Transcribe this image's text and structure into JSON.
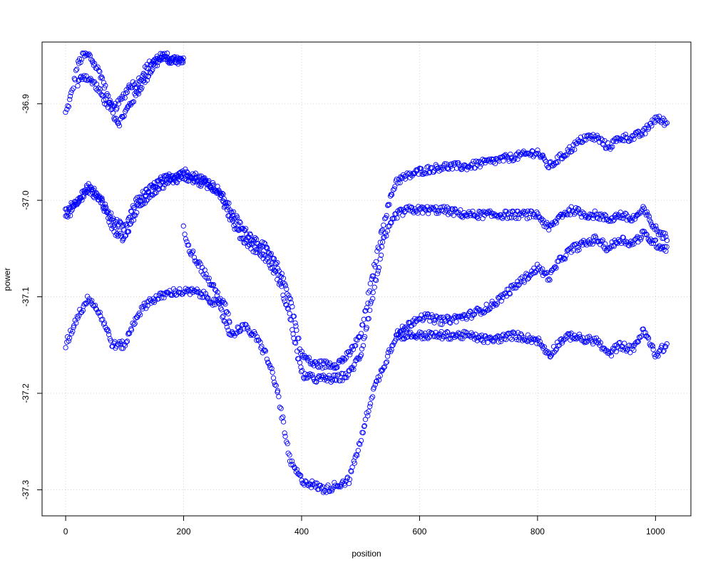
{
  "chart_data": {
    "type": "scatter",
    "title": "",
    "xlabel": "position",
    "ylabel": "power",
    "xlim": [
      -40,
      1060
    ],
    "ylim": [
      -37.327,
      -36.836
    ],
    "x_ticks": [
      0,
      200,
      400,
      600,
      800,
      1000
    ],
    "y_ticks": [
      -37.3,
      -37.2,
      -37.1,
      -37.0,
      -36.9
    ],
    "x_tick_labels": [
      "0",
      "200",
      "400",
      "600",
      "800",
      "1000"
    ],
    "y_tick_labels": [
      "-37.3",
      "-37.2",
      "-37.1",
      "-37.0",
      "-36.9"
    ],
    "grid": true,
    "marker": "open-circle",
    "point_color": "#0000ff",
    "series": [
      {
        "x": [
          0,
          10,
          20,
          30,
          40,
          50,
          60,
          70,
          80,
          90,
          100,
          110,
          120,
          130,
          140,
          150,
          160,
          170,
          180,
          190,
          200
        ],
        "y": [
          -36.91,
          -36.89,
          -36.86,
          -36.85,
          -36.85,
          -36.86,
          -36.87,
          -36.89,
          -36.91,
          -36.92,
          -36.91,
          -36.9,
          -36.89,
          -36.88,
          -36.87,
          -36.86,
          -36.855,
          -36.85,
          -36.855,
          -36.855,
          -36.855
        ]
      },
      {
        "x": [
          20,
          30,
          40,
          50,
          60,
          70,
          80,
          90,
          100,
          110,
          120,
          130,
          140,
          150,
          160,
          170,
          180,
          190,
          200
        ],
        "y": [
          -36.88,
          -36.87,
          -36.875,
          -36.88,
          -36.89,
          -36.9,
          -36.905,
          -36.9,
          -36.89,
          -36.88,
          -36.88,
          -36.87,
          -36.86,
          -36.855,
          -36.85,
          -36.855,
          -36.855,
          -36.855,
          -36.855
        ]
      },
      {
        "x": [
          0,
          20,
          40,
          60,
          80,
          100,
          120,
          140,
          160,
          180,
          200,
          220,
          240,
          260,
          280,
          300,
          320,
          340,
          360,
          380,
          400,
          420,
          440,
          460,
          480,
          500,
          520,
          540,
          560,
          580,
          600,
          640,
          680,
          720,
          760,
          800,
          820,
          840,
          860,
          880,
          900,
          920,
          940,
          960,
          980,
          1000,
          1020
        ],
        "y": [
          -37.02,
          -37.0,
          -36.99,
          -37.0,
          -37.02,
          -37.03,
          -37.0,
          -36.99,
          -36.98,
          -36.975,
          -36.97,
          -36.975,
          -36.98,
          -36.99,
          -37.01,
          -37.03,
          -37.04,
          -37.05,
          -37.07,
          -37.1,
          -37.16,
          -37.17,
          -37.17,
          -37.17,
          -37.16,
          -37.14,
          -37.08,
          -37.02,
          -36.98,
          -36.975,
          -36.97,
          -36.965,
          -36.965,
          -36.96,
          -36.955,
          -36.95,
          -36.965,
          -36.955,
          -36.945,
          -36.935,
          -36.935,
          -36.945,
          -36.935,
          -36.935,
          -36.93,
          -36.915,
          -36.92
        ]
      },
      {
        "x": [
          0,
          20,
          40,
          60,
          80,
          100,
          120,
          140,
          160,
          180,
          200,
          220,
          240,
          260,
          280,
          300,
          320,
          340,
          360,
          380,
          400,
          420,
          440,
          460,
          480,
          500,
          520,
          540,
          560,
          580,
          600,
          640,
          680,
          720,
          760,
          800,
          820,
          840,
          860,
          880,
          900,
          920,
          940,
          960,
          980,
          1000,
          1020
        ],
        "y": [
          -37.01,
          -37.0,
          -36.985,
          -37.0,
          -37.03,
          -37.04,
          -37.01,
          -36.995,
          -36.985,
          -36.98,
          -36.975,
          -36.98,
          -36.985,
          -36.99,
          -37.02,
          -37.04,
          -37.05,
          -37.06,
          -37.08,
          -37.12,
          -37.18,
          -37.185,
          -37.185,
          -37.185,
          -37.18,
          -37.16,
          -37.1,
          -37.04,
          -37.015,
          -37.01,
          -37.01,
          -37.01,
          -37.015,
          -37.015,
          -37.015,
          -37.015,
          -37.03,
          -37.015,
          -37.01,
          -37.015,
          -37.015,
          -37.02,
          -37.015,
          -37.02,
          -37.01,
          -37.03,
          -37.04
        ]
      },
      {
        "x": [
          200,
          210,
          220,
          230,
          240,
          250,
          260,
          270,
          280
        ],
        "y": [
          -37.03,
          -37.05,
          -37.06,
          -37.07,
          -37.08,
          -37.09,
          -37.1,
          -37.11,
          -37.13
        ]
      },
      {
        "x": [
          0,
          20,
          40,
          60,
          80,
          100,
          120,
          140,
          160,
          180,
          200,
          220,
          240,
          260,
          280,
          300,
          320,
          340,
          360,
          380,
          400,
          420,
          440,
          460,
          480,
          500,
          520,
          540,
          560,
          580,
          600,
          640,
          680,
          720,
          760,
          800,
          820,
          840,
          860,
          880,
          900,
          920,
          940,
          960,
          980,
          1000,
          1020
        ],
        "y": [
          -37.15,
          -37.12,
          -37.1,
          -37.12,
          -37.15,
          -37.15,
          -37.12,
          -37.105,
          -37.1,
          -37.095,
          -37.095,
          -37.095,
          -37.1,
          -37.11,
          -37.14,
          -37.13,
          -37.14,
          -37.16,
          -37.2,
          -37.27,
          -37.29,
          -37.295,
          -37.3,
          -37.295,
          -37.29,
          -37.25,
          -37.2,
          -37.17,
          -37.14,
          -37.13,
          -37.12,
          -37.125,
          -37.12,
          -37.11,
          -37.09,
          -37.07,
          -37.08,
          -37.06,
          -37.05,
          -37.045,
          -37.04,
          -37.05,
          -37.04,
          -37.045,
          -37.035,
          -37.045,
          -37.05
        ]
      },
      {
        "x": [
          560,
          600,
          640,
          680,
          720,
          760,
          800,
          820,
          840,
          860,
          880,
          900,
          920,
          940,
          960,
          980,
          1000,
          1020
        ],
        "y": [
          -37.14,
          -37.14,
          -37.14,
          -37.14,
          -37.145,
          -37.14,
          -37.145,
          -37.16,
          -37.145,
          -37.14,
          -37.145,
          -37.145,
          -37.16,
          -37.15,
          -37.155,
          -37.135,
          -37.16,
          -37.15
        ]
      }
    ]
  }
}
